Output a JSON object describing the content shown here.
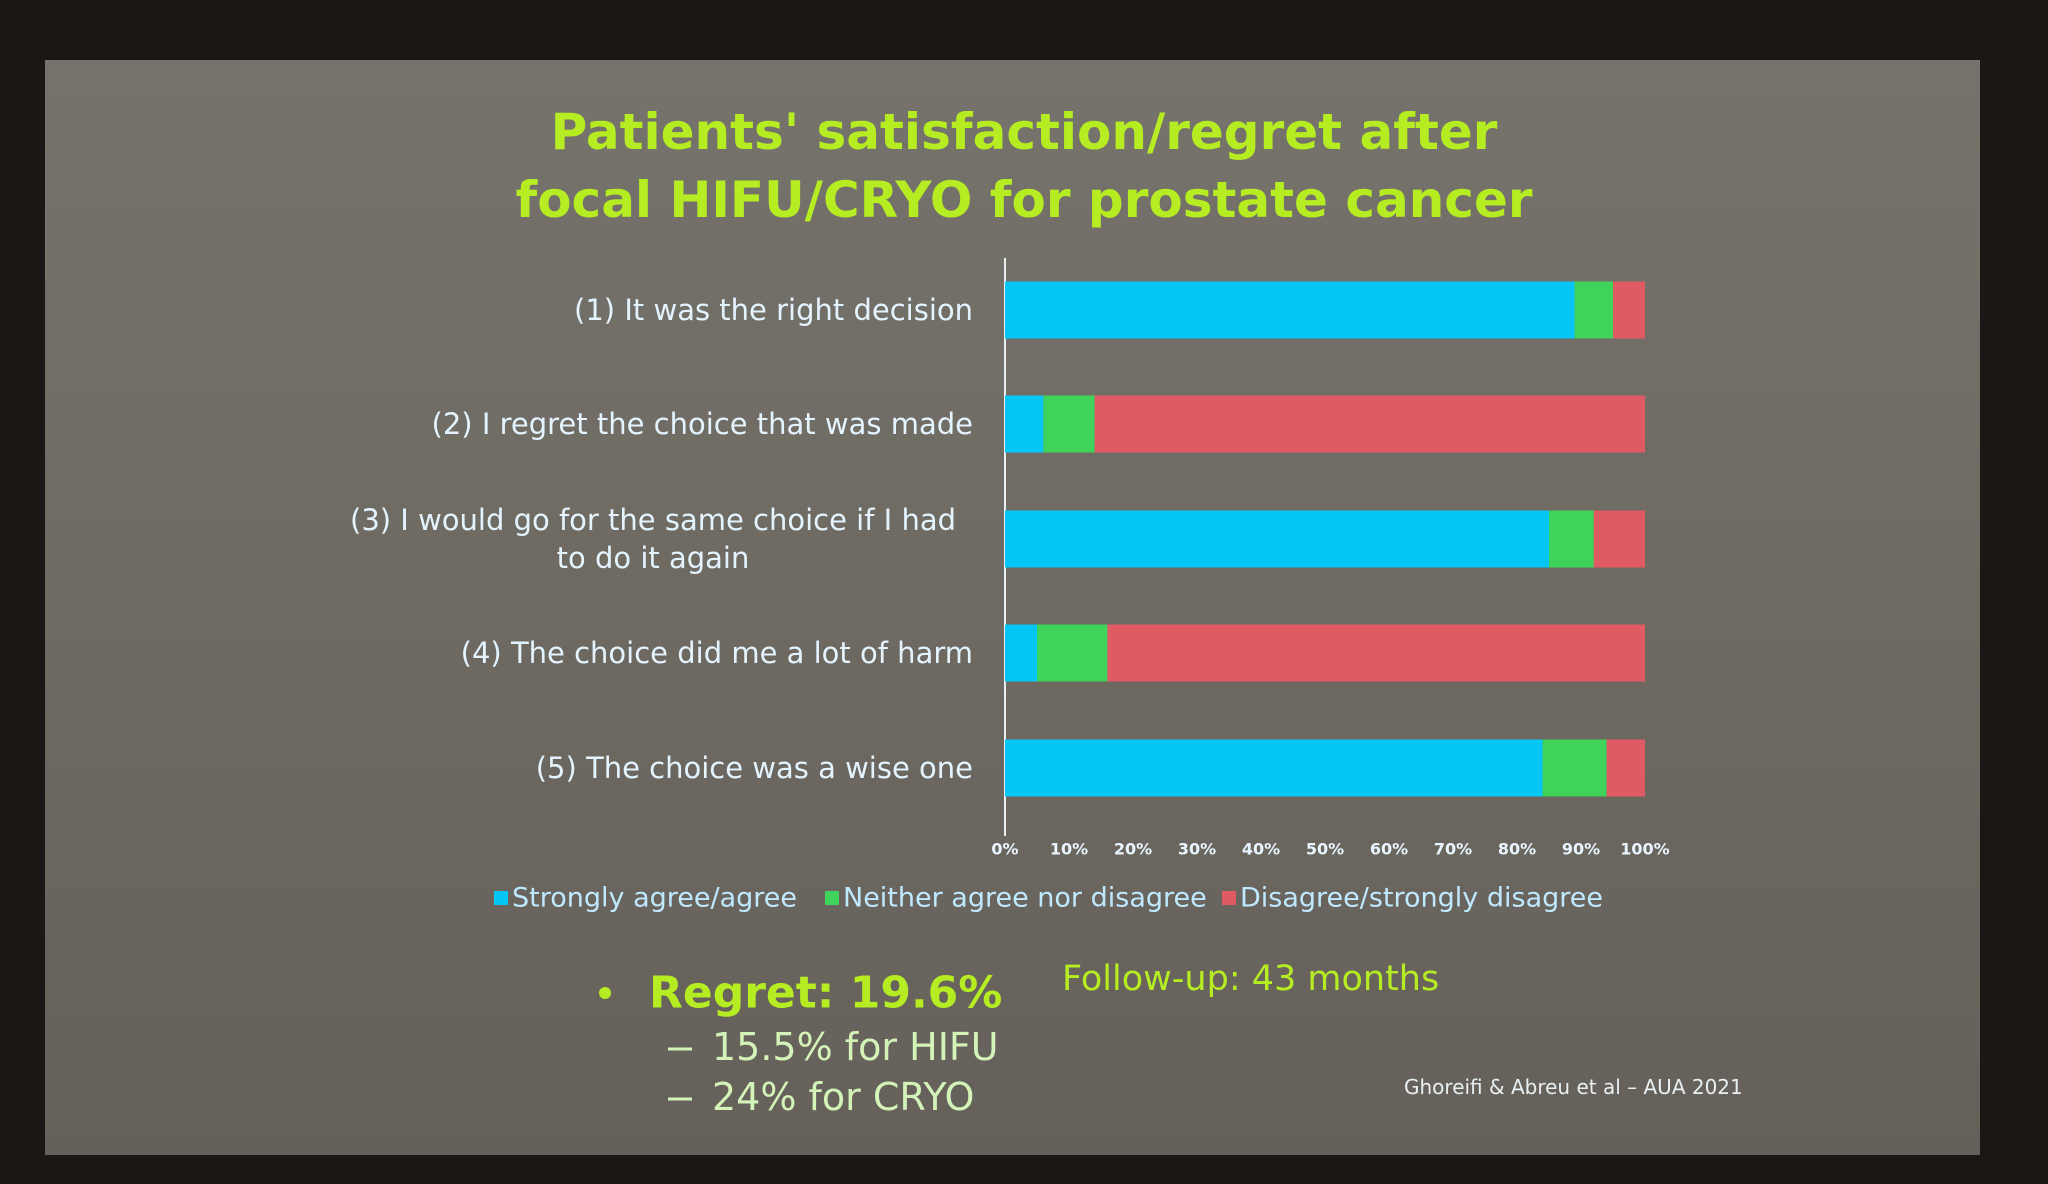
{
  "chart_data": {
    "type": "stacked_bar_horizontal",
    "title": [
      "Patients' satisfaction/regret after",
      "focal HIFU/CRYO for prostate cancer"
    ],
    "categories": [
      "(1) It was the right decision",
      "(2) I regret the choice that was made",
      "(3) I would go for the same choice if I had to do it again",
      "(4) The choice did me a lot of harm",
      "(5) The choice was a wise one"
    ],
    "series": [
      {
        "name": "Strongly agree/agree",
        "color": "#05c6f6",
        "values": [
          89,
          6,
          85,
          5,
          84
        ]
      },
      {
        "name": "Neither agree nor disagree",
        "color": "#3fd35c",
        "values": [
          6,
          8,
          7,
          11,
          10
        ]
      },
      {
        "name": "Disagree/strongly disagree",
        "color": "#df5a62",
        "values": [
          5,
          86,
          8,
          84,
          6
        ]
      }
    ],
    "xlim": [
      0,
      100
    ],
    "xticks": [
      {
        "value": 0,
        "label": "0%"
      },
      {
        "value": 10,
        "label": "10%"
      },
      {
        "value": 20,
        "label": "20%"
      },
      {
        "value": 30,
        "label": "30%"
      },
      {
        "value": 40,
        "label": "40%"
      },
      {
        "value": 50,
        "label": "50%"
      },
      {
        "value": 60,
        "label": "60%"
      },
      {
        "value": 70,
        "label": "70%"
      },
      {
        "value": 80,
        "label": "80%"
      },
      {
        "value": 90,
        "label": "90%"
      },
      {
        "value": 100,
        "label": "100%"
      }
    ],
    "grid": false,
    "legend": "bottom",
    "annotations": [
      "Regret: 19.6%",
      "15.5% for HIFU",
      "24% for CRYO",
      "Follow-up: 43 months",
      "Ghoreifi & Abreu et al – AUA 2021"
    ]
  }
}
